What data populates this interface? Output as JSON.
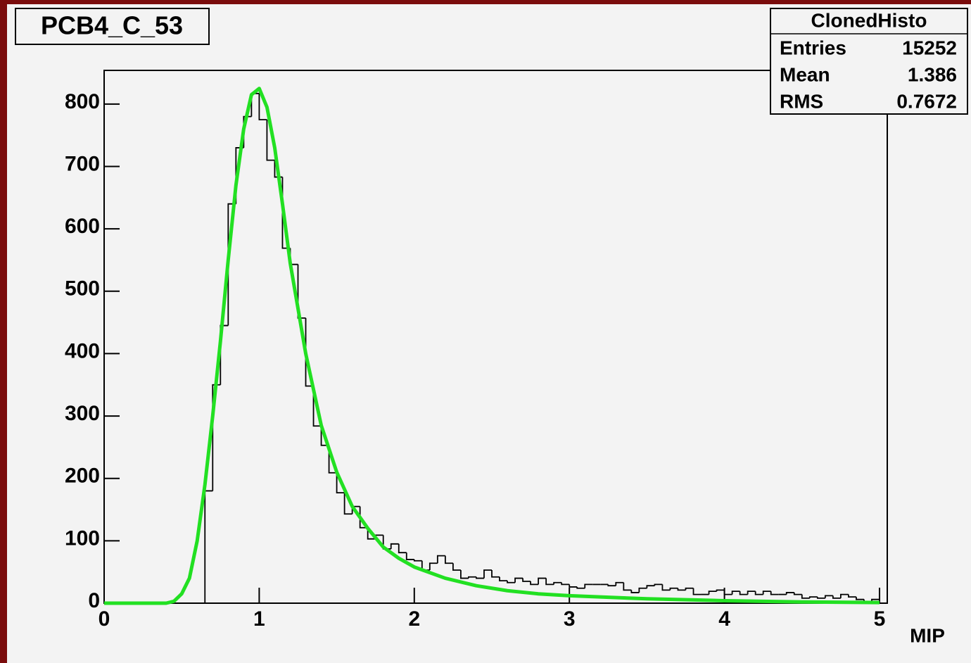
{
  "chart_data": {
    "type": "histogram",
    "title": "PCB4_C_53",
    "x_label": "MIP",
    "xlim": [
      0,
      5.05
    ],
    "ylim": [
      0,
      854
    ],
    "xticks": [
      0,
      1,
      2,
      3,
      4,
      5
    ],
    "yticks": [
      0,
      100,
      200,
      300,
      400,
      500,
      600,
      700,
      800
    ],
    "stats_box": {
      "title": "ClonedHisto",
      "entries": [
        {
          "label": "Entries",
          "value": 15252
        },
        {
          "label": "Mean",
          "value": 1.386
        },
        {
          "label": "RMS",
          "value": 0.7672
        }
      ]
    },
    "series": [
      {
        "type": "histogram",
        "color": "#000000",
        "bins": [
          0,
          0.05,
          0.1,
          0.15,
          0.2,
          0.25,
          0.3,
          0.35,
          0.4,
          0.45,
          0.5,
          0.55,
          0.6,
          0.65,
          0.7,
          0.75,
          0.8,
          0.85,
          0.9,
          0.95,
          1,
          1.05,
          1.1,
          1.15,
          1.2,
          1.25,
          1.3,
          1.35,
          1.4,
          1.45,
          1.5,
          1.55,
          1.6,
          1.65,
          1.7,
          1.75,
          1.8,
          1.85,
          1.9,
          1.95,
          2,
          2.05,
          2.1,
          2.15,
          2.2,
          2.25,
          2.3,
          2.35,
          2.4,
          2.45,
          2.5,
          2.55,
          2.6,
          2.65,
          2.7,
          2.75,
          2.8,
          2.85,
          2.9,
          2.95,
          3,
          3.05,
          3.1,
          3.15,
          3.2,
          3.25,
          3.3,
          3.35,
          3.4,
          3.45,
          3.5,
          3.55,
          3.6,
          3.65,
          3.7,
          3.75,
          3.8,
          3.85,
          3.9,
          3.95,
          4,
          4.05,
          4.1,
          4.15,
          4.2,
          4.25,
          4.3,
          4.35,
          4.4,
          4.45,
          4.5,
          4.55,
          4.6,
          4.65,
          4.7,
          4.75,
          4.8,
          4.85,
          4.9,
          4.95,
          5
        ],
        "values": [
          0,
          0,
          0,
          0,
          0,
          0,
          0,
          0,
          0,
          0,
          0,
          0,
          0,
          180,
          350,
          445,
          640,
          730,
          780,
          817,
          775,
          710,
          683,
          569,
          543,
          457,
          348,
          284,
          253,
          209,
          177,
          143,
          155,
          121,
          103,
          109,
          87,
          95,
          81,
          70,
          68,
          53,
          64,
          76,
          64,
          53,
          40,
          42,
          40,
          53,
          42,
          36,
          33,
          40,
          35,
          30,
          40,
          30,
          33,
          30,
          26,
          24,
          30,
          30,
          30,
          28,
          33,
          21,
          17,
          24,
          28,
          30,
          21,
          24,
          21,
          24,
          14,
          14,
          19,
          21,
          14,
          19,
          14,
          19,
          14,
          19,
          14,
          14,
          17,
          14,
          8,
          10,
          8,
          12,
          8,
          14,
          10,
          6,
          3,
          6
        ]
      },
      {
        "type": "line",
        "color": "#22e022",
        "x": [
          0,
          0.4,
          0.45,
          0.5,
          0.55,
          0.6,
          0.65,
          0.7,
          0.75,
          0.8,
          0.85,
          0.9,
          0.95,
          1,
          1.05,
          1.1,
          1.15,
          1.2,
          1.3,
          1.4,
          1.5,
          1.6,
          1.7,
          1.8,
          1.9,
          2,
          2.2,
          2.4,
          2.6,
          2.8,
          3,
          3.5,
          4,
          4.5,
          5
        ],
        "values": [
          0,
          0,
          3,
          15,
          40,
          100,
          190,
          300,
          420,
          550,
          670,
          760,
          815,
          825,
          795,
          730,
          640,
          545,
          400,
          285,
          210,
          155,
          120,
          90,
          72,
          58,
          40,
          28,
          20,
          15,
          12,
          7,
          4,
          2,
          1
        ]
      }
    ]
  }
}
